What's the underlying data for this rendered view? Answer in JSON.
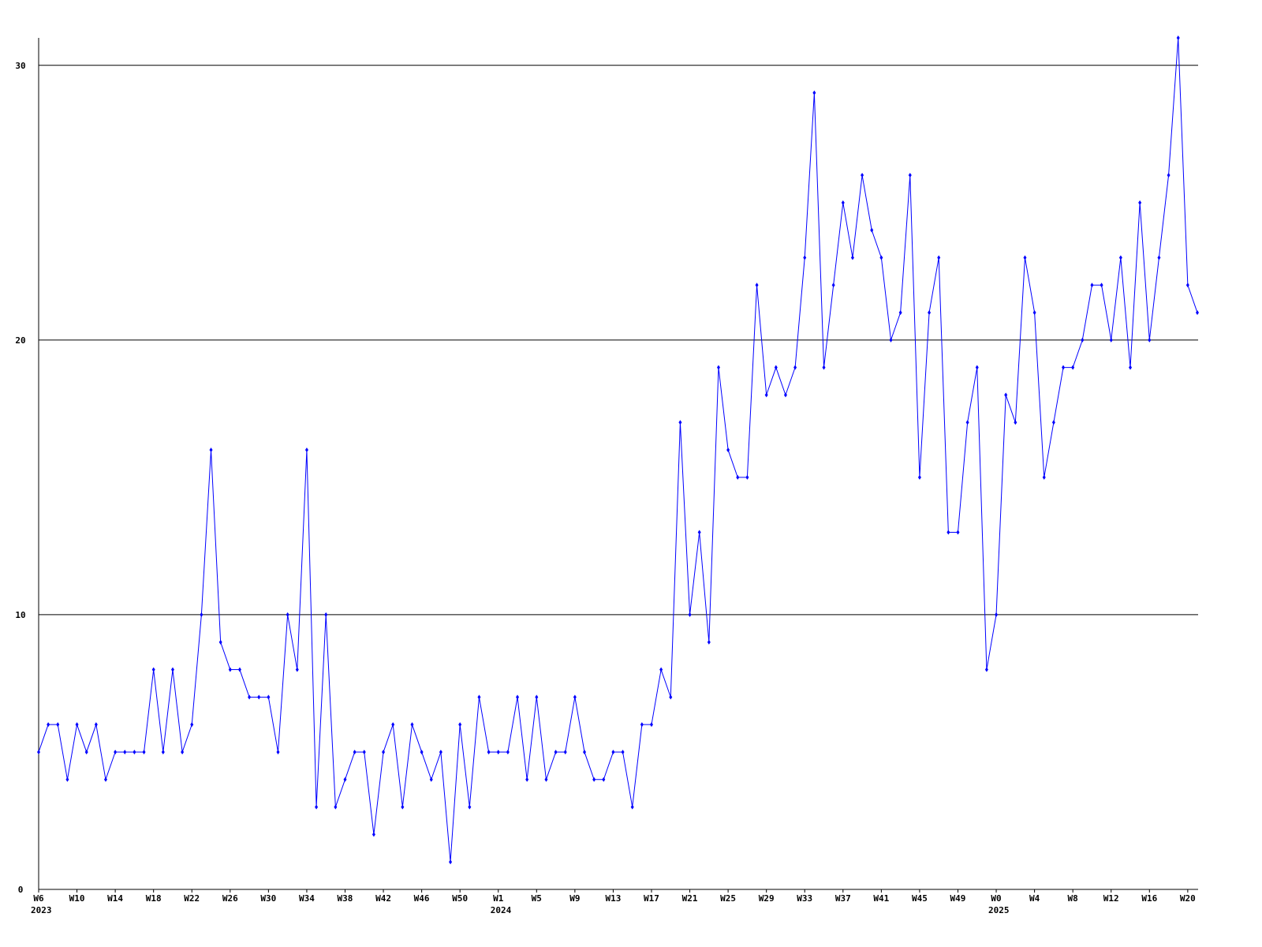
{
  "chart_data": {
    "type": "line",
    "categories": [
      "W6",
      null,
      null,
      null,
      "W10",
      null,
      null,
      null,
      "W14",
      null,
      null,
      null,
      "W18",
      null,
      null,
      null,
      "W22",
      null,
      null,
      null,
      "W26",
      null,
      null,
      null,
      "W30",
      null,
      null,
      null,
      "W34",
      null,
      null,
      null,
      "W38",
      null,
      null,
      null,
      "W42",
      null,
      null,
      null,
      "W46",
      null,
      null,
      null,
      "W50",
      null,
      null,
      null,
      "W1",
      null,
      null,
      null,
      "W5",
      null,
      null,
      null,
      "W9",
      null,
      null,
      null,
      "W13",
      null,
      null,
      null,
      "W17",
      null,
      null,
      null,
      "W21",
      null,
      null,
      null,
      "W25",
      null,
      null,
      null,
      "W29",
      null,
      null,
      null,
      "W33",
      null,
      null,
      null,
      "W37",
      null,
      null,
      null,
      "W41",
      null,
      null,
      null,
      "W45",
      null,
      null,
      null,
      "W49",
      null,
      null,
      null,
      "W0",
      null,
      null,
      null,
      "W4",
      null,
      null,
      null,
      "W8",
      null,
      null,
      null,
      "W12",
      null,
      null,
      null,
      "W16",
      null,
      null,
      null,
      "W20",
      null
    ],
    "category_years": [
      "2023",
      null,
      null,
      null,
      null,
      null,
      null,
      null,
      null,
      null,
      null,
      null,
      null,
      null,
      null,
      null,
      null,
      null,
      null,
      null,
      null,
      null,
      null,
      null,
      null,
      null,
      null,
      null,
      null,
      null,
      null,
      null,
      null,
      null,
      null,
      null,
      null,
      null,
      null,
      null,
      null,
      null,
      null,
      null,
      null,
      null,
      null,
      null,
      "2024",
      null,
      null,
      null,
      null,
      null,
      null,
      null,
      null,
      null,
      null,
      null,
      null,
      null,
      null,
      null,
      null,
      null,
      null,
      null,
      null,
      null,
      null,
      null,
      null,
      null,
      null,
      null,
      null,
      null,
      null,
      null,
      null,
      null,
      null,
      null,
      null,
      null,
      null,
      null,
      null,
      null,
      null,
      null,
      null,
      null,
      null,
      null,
      null,
      null,
      null,
      null,
      "2025",
      null,
      null,
      null,
      null,
      null,
      null,
      null,
      null,
      null,
      null,
      null,
      null,
      null,
      null,
      null,
      null,
      null,
      null,
      null,
      null,
      null
    ],
    "series": [
      {
        "color": "#0000ff",
        "values": [
          5,
          6,
          6,
          4,
          6,
          5,
          6,
          4,
          5,
          5,
          5,
          5,
          8,
          5,
          8,
          5,
          6,
          10,
          16,
          9,
          8,
          8,
          7,
          7,
          7,
          5,
          10,
          8,
          16,
          3,
          10,
          3,
          4,
          5,
          5,
          2,
          5,
          6,
          3,
          6,
          5,
          4,
          5,
          1,
          6,
          3,
          7,
          5,
          5,
          5,
          7,
          4,
          7,
          4,
          5,
          5,
          7,
          5,
          4,
          4,
          5,
          5,
          3,
          6,
          6,
          8,
          7,
          17,
          10,
          13,
          9,
          19,
          16,
          15,
          15,
          22,
          18,
          19,
          18,
          19,
          23,
          29,
          19,
          22,
          25,
          23,
          26,
          24,
          23,
          20,
          21,
          26,
          15,
          21,
          23,
          13,
          13,
          17,
          19,
          8,
          10,
          18,
          17,
          23,
          21,
          15,
          17,
          19,
          19,
          20,
          22,
          22,
          20,
          23,
          19,
          25,
          20,
          23,
          26,
          31,
          22,
          21
        ]
      }
    ],
    "ylim": [
      0,
      31
    ],
    "yticks": [
      0,
      10,
      20,
      30
    ],
    "grid": true
  }
}
